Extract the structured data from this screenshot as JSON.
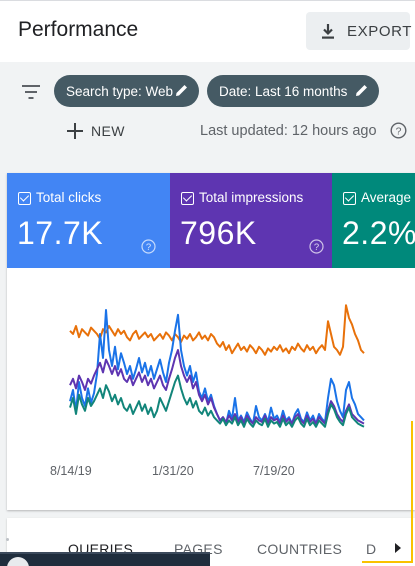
{
  "header": {
    "title": "Performance",
    "export_label": "EXPORT",
    "export_icon": "download-icon"
  },
  "filters": {
    "filter_icon": "filter-icon",
    "search_type_chip": "Search type: Web",
    "date_chip": "Date: Last 16 months",
    "new_label": "NEW",
    "last_updated": "Last updated: 12 hours ago"
  },
  "metrics": [
    {
      "label": "Total clicks",
      "value": "17.7K",
      "color": "#4285f4",
      "checked": true
    },
    {
      "label": "Total impressions",
      "value": "796K",
      "color": "#5e35b1",
      "checked": true
    },
    {
      "label": "Average",
      "value": "2.2%",
      "color": "#00897b",
      "checked": true
    }
  ],
  "chart_data": {
    "type": "line",
    "title": "",
    "xlabel": "",
    "ylabel": "",
    "x_tick_labels": [
      "8/14/19",
      "1/31/20",
      "7/19/20"
    ],
    "y_axis_shown": false,
    "grid": false,
    "series_style": "dense daily lines, values normalized 0-1 (no y axis printed)",
    "series": [
      {
        "color": "#e8710a",
        "values": [
          0.72,
          0.7,
          0.75,
          0.68,
          0.73,
          0.71,
          0.69,
          0.74,
          0.72,
          0.7,
          0.67,
          0.73,
          0.71,
          0.75,
          0.72,
          0.69,
          0.73,
          0.7,
          0.72,
          0.68,
          0.66,
          0.7,
          0.72,
          0.67,
          0.69,
          0.71,
          0.68,
          0.7,
          0.66,
          0.68,
          0.7,
          0.67,
          0.71,
          0.69,
          0.66,
          0.7,
          0.68,
          0.65,
          0.69,
          0.67,
          0.7,
          0.66,
          0.68,
          0.71,
          0.67,
          0.69,
          0.66,
          0.7,
          0.68,
          0.64,
          0.62,
          0.65,
          0.6,
          0.63,
          0.58,
          0.61,
          0.64,
          0.6,
          0.62,
          0.59,
          0.63,
          0.61,
          0.58,
          0.62,
          0.6,
          0.57,
          0.61,
          0.59,
          0.62,
          0.6,
          0.63,
          0.59,
          0.61,
          0.58,
          0.62,
          0.6,
          0.64,
          0.61,
          0.59,
          0.63,
          0.6,
          0.62,
          0.58,
          0.61,
          0.63,
          0.6,
          0.78,
          0.7,
          0.62,
          0.6,
          0.57,
          0.62,
          0.88,
          0.8,
          0.76,
          0.7,
          0.66,
          0.6,
          0.58
        ]
      },
      {
        "color": "#1a73e8",
        "values": [
          0.28,
          0.35,
          0.22,
          0.4,
          0.3,
          0.25,
          0.36,
          0.27,
          0.33,
          0.45,
          0.7,
          0.55,
          0.85,
          0.6,
          0.5,
          0.62,
          0.48,
          0.58,
          0.52,
          0.45,
          0.5,
          0.42,
          0.48,
          0.55,
          0.46,
          0.52,
          0.44,
          0.5,
          0.42,
          0.48,
          0.54,
          0.46,
          0.4,
          0.52,
          0.6,
          0.72,
          0.82,
          0.6,
          0.5,
          0.44,
          0.5,
          0.4,
          0.46,
          0.34,
          0.3,
          0.36,
          0.28,
          0.32,
          0.25,
          0.2,
          0.16,
          0.18,
          0.14,
          0.22,
          0.17,
          0.3,
          0.16,
          0.19,
          0.15,
          0.21,
          0.17,
          0.14,
          0.25,
          0.18,
          0.16,
          0.2,
          0.15,
          0.24,
          0.17,
          0.19,
          0.15,
          0.22,
          0.16,
          0.18,
          0.14,
          0.2,
          0.23,
          0.17,
          0.15,
          0.21,
          0.16,
          0.19,
          0.14,
          0.2,
          0.17,
          0.15,
          0.3,
          0.42,
          0.38,
          0.28,
          0.22,
          0.18,
          0.35,
          0.4,
          0.3,
          0.26,
          0.2,
          0.18,
          0.16
        ]
      },
      {
        "color": "#5e35b1",
        "values": [
          0.38,
          0.42,
          0.36,
          0.44,
          0.4,
          0.35,
          0.42,
          0.39,
          0.44,
          0.48,
          0.52,
          0.46,
          0.54,
          0.5,
          0.45,
          0.5,
          0.44,
          0.48,
          0.42,
          0.4,
          0.44,
          0.38,
          0.42,
          0.46,
          0.4,
          0.44,
          0.38,
          0.42,
          0.36,
          0.4,
          0.44,
          0.38,
          0.35,
          0.42,
          0.48,
          0.55,
          0.6,
          0.5,
          0.44,
          0.4,
          0.44,
          0.36,
          0.4,
          0.32,
          0.28,
          0.32,
          0.26,
          0.3,
          0.24,
          0.2,
          0.16,
          0.18,
          0.15,
          0.19,
          0.16,
          0.2,
          0.15,
          0.18,
          0.14,
          0.19,
          0.16,
          0.14,
          0.18,
          0.16,
          0.15,
          0.19,
          0.14,
          0.18,
          0.16,
          0.17,
          0.14,
          0.19,
          0.15,
          0.17,
          0.14,
          0.18,
          0.2,
          0.16,
          0.14,
          0.19,
          0.15,
          0.17,
          0.14,
          0.18,
          0.16,
          0.14,
          0.22,
          0.28,
          0.25,
          0.2,
          0.17,
          0.15,
          0.22,
          0.26,
          0.2,
          0.18,
          0.16,
          0.15,
          0.14
        ]
      },
      {
        "color": "#12857a",
        "values": [
          0.24,
          0.3,
          0.2,
          0.32,
          0.26,
          0.22,
          0.3,
          0.25,
          0.28,
          0.32,
          0.36,
          0.3,
          0.38,
          0.34,
          0.28,
          0.32,
          0.26,
          0.3,
          0.24,
          0.22,
          0.26,
          0.2,
          0.24,
          0.28,
          0.22,
          0.26,
          0.2,
          0.24,
          0.18,
          0.22,
          0.3,
          0.26,
          0.22,
          0.28,
          0.34,
          0.4,
          0.44,
          0.36,
          0.3,
          0.26,
          0.3,
          0.24,
          0.28,
          0.22,
          0.2,
          0.24,
          0.19,
          0.22,
          0.18,
          0.16,
          0.14,
          0.17,
          0.13,
          0.16,
          0.14,
          0.18,
          0.13,
          0.16,
          0.12,
          0.17,
          0.14,
          0.12,
          0.16,
          0.14,
          0.13,
          0.17,
          0.12,
          0.16,
          0.14,
          0.15,
          0.12,
          0.17,
          0.13,
          0.15,
          0.12,
          0.16,
          0.18,
          0.14,
          0.12,
          0.17,
          0.13,
          0.15,
          0.12,
          0.16,
          0.14,
          0.12,
          0.2,
          0.26,
          0.23,
          0.18,
          0.15,
          0.13,
          0.2,
          0.24,
          0.18,
          0.16,
          0.14,
          0.13,
          0.12
        ]
      }
    ]
  },
  "tabs": [
    {
      "label": "QUERIES",
      "active": true
    },
    {
      "label": "PAGES",
      "active": false
    },
    {
      "label": "COUNTRIES",
      "active": false
    },
    {
      "label": "D",
      "active": false
    }
  ],
  "icons": {
    "pencil": "pencil-icon",
    "help": "help-icon",
    "plus": "plus-icon",
    "scroll_right": "chevron-right-icon"
  }
}
